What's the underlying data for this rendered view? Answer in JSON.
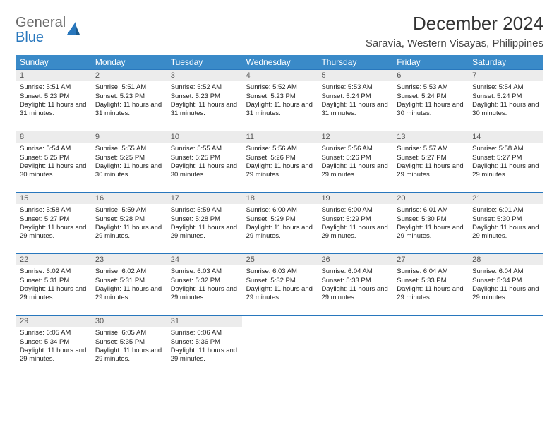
{
  "brand": {
    "word1": "General",
    "word2": "Blue"
  },
  "title": "December 2024",
  "location": "Saravia, Western Visayas, Philippines",
  "colors": {
    "header_bg": "#3a8ac8",
    "header_text": "#ffffff",
    "week_border": "#2877bd",
    "daynum_bg": "#ececec",
    "brand_gray": "#6a6a6a",
    "brand_blue": "#2877bd"
  },
  "dow": [
    "Sunday",
    "Monday",
    "Tuesday",
    "Wednesday",
    "Thursday",
    "Friday",
    "Saturday"
  ],
  "weeks": [
    [
      {
        "n": "1",
        "sr": "5:51 AM",
        "ss": "5:23 PM",
        "dl": "11 hours and 31 minutes."
      },
      {
        "n": "2",
        "sr": "5:51 AM",
        "ss": "5:23 PM",
        "dl": "11 hours and 31 minutes."
      },
      {
        "n": "3",
        "sr": "5:52 AM",
        "ss": "5:23 PM",
        "dl": "11 hours and 31 minutes."
      },
      {
        "n": "4",
        "sr": "5:52 AM",
        "ss": "5:23 PM",
        "dl": "11 hours and 31 minutes."
      },
      {
        "n": "5",
        "sr": "5:53 AM",
        "ss": "5:24 PM",
        "dl": "11 hours and 31 minutes."
      },
      {
        "n": "6",
        "sr": "5:53 AM",
        "ss": "5:24 PM",
        "dl": "11 hours and 30 minutes."
      },
      {
        "n": "7",
        "sr": "5:54 AM",
        "ss": "5:24 PM",
        "dl": "11 hours and 30 minutes."
      }
    ],
    [
      {
        "n": "8",
        "sr": "5:54 AM",
        "ss": "5:25 PM",
        "dl": "11 hours and 30 minutes."
      },
      {
        "n": "9",
        "sr": "5:55 AM",
        "ss": "5:25 PM",
        "dl": "11 hours and 30 minutes."
      },
      {
        "n": "10",
        "sr": "5:55 AM",
        "ss": "5:25 PM",
        "dl": "11 hours and 30 minutes."
      },
      {
        "n": "11",
        "sr": "5:56 AM",
        "ss": "5:26 PM",
        "dl": "11 hours and 29 minutes."
      },
      {
        "n": "12",
        "sr": "5:56 AM",
        "ss": "5:26 PM",
        "dl": "11 hours and 29 minutes."
      },
      {
        "n": "13",
        "sr": "5:57 AM",
        "ss": "5:27 PM",
        "dl": "11 hours and 29 minutes."
      },
      {
        "n": "14",
        "sr": "5:58 AM",
        "ss": "5:27 PM",
        "dl": "11 hours and 29 minutes."
      }
    ],
    [
      {
        "n": "15",
        "sr": "5:58 AM",
        "ss": "5:27 PM",
        "dl": "11 hours and 29 minutes."
      },
      {
        "n": "16",
        "sr": "5:59 AM",
        "ss": "5:28 PM",
        "dl": "11 hours and 29 minutes."
      },
      {
        "n": "17",
        "sr": "5:59 AM",
        "ss": "5:28 PM",
        "dl": "11 hours and 29 minutes."
      },
      {
        "n": "18",
        "sr": "6:00 AM",
        "ss": "5:29 PM",
        "dl": "11 hours and 29 minutes."
      },
      {
        "n": "19",
        "sr": "6:00 AM",
        "ss": "5:29 PM",
        "dl": "11 hours and 29 minutes."
      },
      {
        "n": "20",
        "sr": "6:01 AM",
        "ss": "5:30 PM",
        "dl": "11 hours and 29 minutes."
      },
      {
        "n": "21",
        "sr": "6:01 AM",
        "ss": "5:30 PM",
        "dl": "11 hours and 29 minutes."
      }
    ],
    [
      {
        "n": "22",
        "sr": "6:02 AM",
        "ss": "5:31 PM",
        "dl": "11 hours and 29 minutes."
      },
      {
        "n": "23",
        "sr": "6:02 AM",
        "ss": "5:31 PM",
        "dl": "11 hours and 29 minutes."
      },
      {
        "n": "24",
        "sr": "6:03 AM",
        "ss": "5:32 PM",
        "dl": "11 hours and 29 minutes."
      },
      {
        "n": "25",
        "sr": "6:03 AM",
        "ss": "5:32 PM",
        "dl": "11 hours and 29 minutes."
      },
      {
        "n": "26",
        "sr": "6:04 AM",
        "ss": "5:33 PM",
        "dl": "11 hours and 29 minutes."
      },
      {
        "n": "27",
        "sr": "6:04 AM",
        "ss": "5:33 PM",
        "dl": "11 hours and 29 minutes."
      },
      {
        "n": "28",
        "sr": "6:04 AM",
        "ss": "5:34 PM",
        "dl": "11 hours and 29 minutes."
      }
    ],
    [
      {
        "n": "29",
        "sr": "6:05 AM",
        "ss": "5:34 PM",
        "dl": "11 hours and 29 minutes."
      },
      {
        "n": "30",
        "sr": "6:05 AM",
        "ss": "5:35 PM",
        "dl": "11 hours and 29 minutes."
      },
      {
        "n": "31",
        "sr": "6:06 AM",
        "ss": "5:36 PM",
        "dl": "11 hours and 29 minutes."
      },
      null,
      null,
      null,
      null
    ]
  ],
  "labels": {
    "sunrise": "Sunrise: ",
    "sunset": "Sunset: ",
    "daylight": "Daylight: "
  }
}
